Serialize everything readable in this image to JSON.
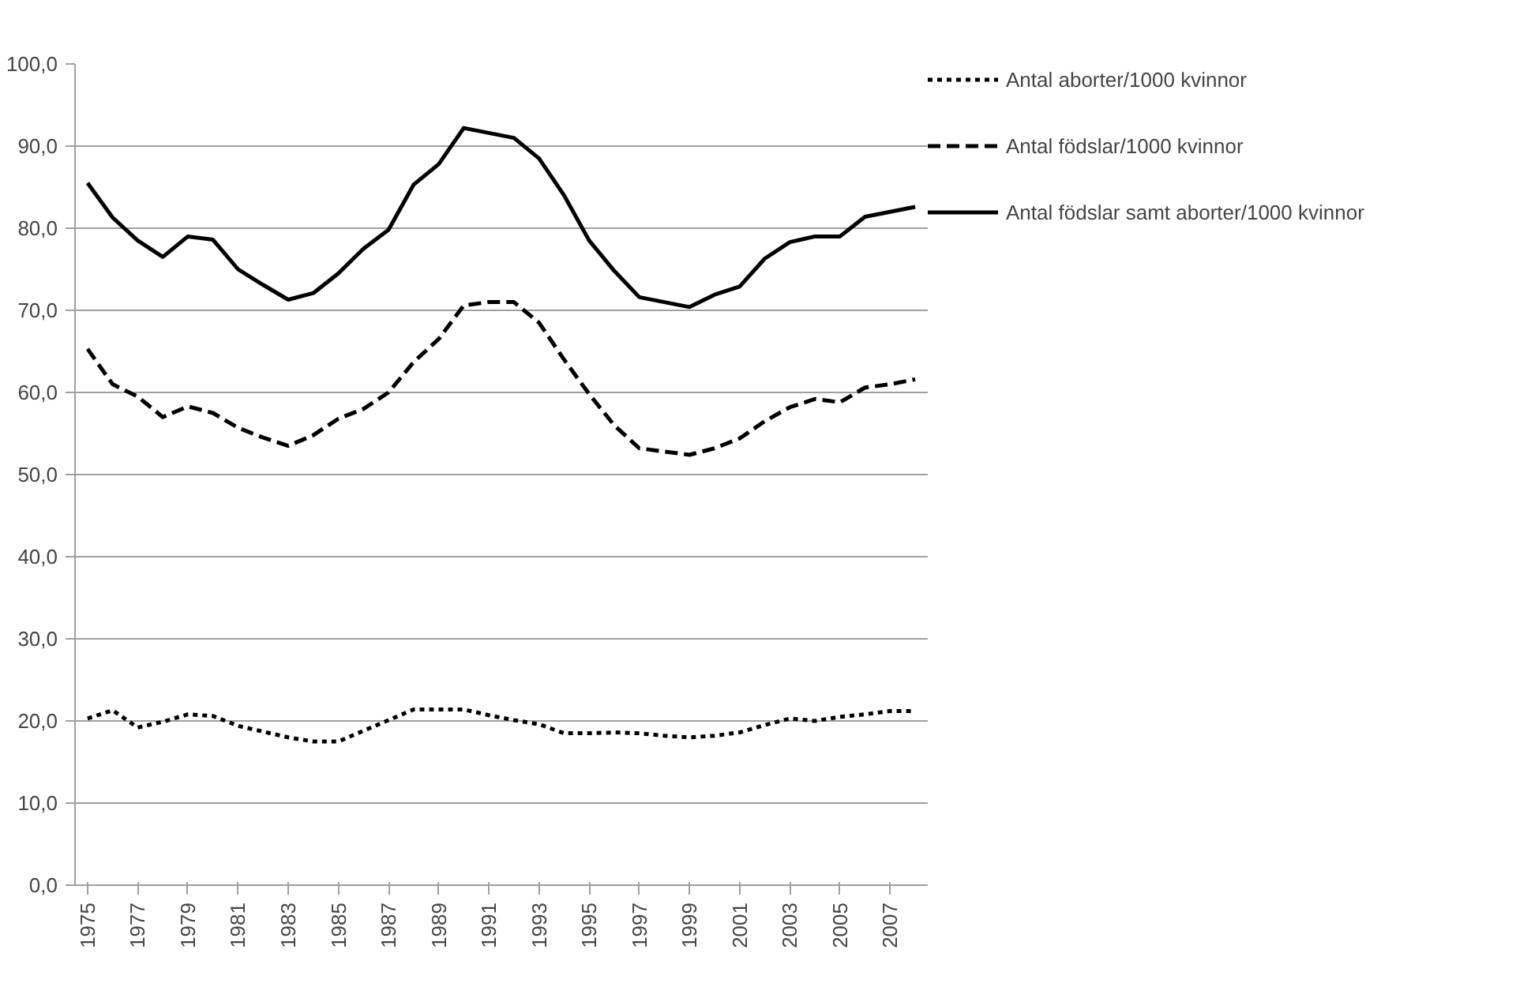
{
  "chart_data": {
    "type": "line",
    "categories": [
      "1975",
      null,
      "1977",
      null,
      "1979",
      null,
      "1981",
      null,
      "1983",
      null,
      "1985",
      null,
      "1987",
      null,
      "1989",
      null,
      "1991",
      null,
      "1993",
      null,
      "1995",
      null,
      "1997",
      null,
      "1999",
      null,
      "2001",
      null,
      "2003",
      null,
      "2005",
      null,
      "2007",
      null
    ],
    "series": [
      {
        "name": "Antal aborter/1000 kvinnor",
        "color": "#000000",
        "line_style": "dotted",
        "values": [
          20.3,
          21.3,
          19.2,
          19.9,
          20.8,
          20.6,
          19.4,
          18.7,
          18.0,
          17.5,
          17.5,
          18.8,
          20.1,
          21.4,
          21.4,
          21.4,
          20.7,
          20.1,
          19.6,
          18.5,
          18.5,
          18.6,
          18.5,
          18.2,
          18.0,
          18.2,
          18.6,
          19.5,
          20.3,
          20.0,
          20.5,
          20.8,
          21.2,
          21.2
        ]
      },
      {
        "name": "Antal födslar/1000 kvinnor",
        "color": "#000000",
        "line_style": "dashed",
        "values": [
          65.3,
          61.0,
          59.5,
          57.0,
          58.3,
          57.5,
          55.7,
          54.5,
          53.5,
          54.8,
          56.8,
          58.0,
          60.0,
          63.7,
          66.5,
          70.6,
          71.0,
          71.0,
          68.5,
          64.0,
          59.8,
          56.0,
          53.2,
          52.8,
          52.4,
          53.2,
          54.4,
          56.5,
          58.2,
          59.2,
          58.8,
          60.6,
          61.0,
          61.6
        ]
      },
      {
        "name": "Antal födslar samt aborter/1000 kvinnor",
        "color": "#000000",
        "line_style": "solid",
        "values": [
          85.5,
          81.3,
          78.5,
          76.5,
          79.0,
          78.6,
          75.0,
          73.1,
          71.3,
          72.1,
          74.5,
          77.5,
          79.8,
          85.3,
          87.8,
          92.2,
          91.6,
          91.0,
          88.5,
          84.0,
          78.5,
          74.8,
          71.6,
          71.0,
          70.4,
          71.9,
          72.9,
          76.3,
          78.3,
          79.0,
          79.0,
          81.4,
          82.0,
          82.6
        ]
      }
    ],
    "ylim": [
      0,
      100
    ],
    "yticks": [
      {
        "value": 0,
        "label": "0,0"
      },
      {
        "value": 10,
        "label": "10,0"
      },
      {
        "value": 20,
        "label": "20,0"
      },
      {
        "value": 30,
        "label": "30,0"
      },
      {
        "value": 40,
        "label": "40,0"
      },
      {
        "value": 50,
        "label": "50,0"
      },
      {
        "value": 60,
        "label": "60,0"
      },
      {
        "value": 70,
        "label": "70,0"
      },
      {
        "value": 80,
        "label": "80,0"
      },
      {
        "value": 90,
        "label": "90,0"
      },
      {
        "value": 100,
        "label": "100,0"
      }
    ],
    "grid": "y",
    "legend": "right",
    "marker": "none"
  }
}
